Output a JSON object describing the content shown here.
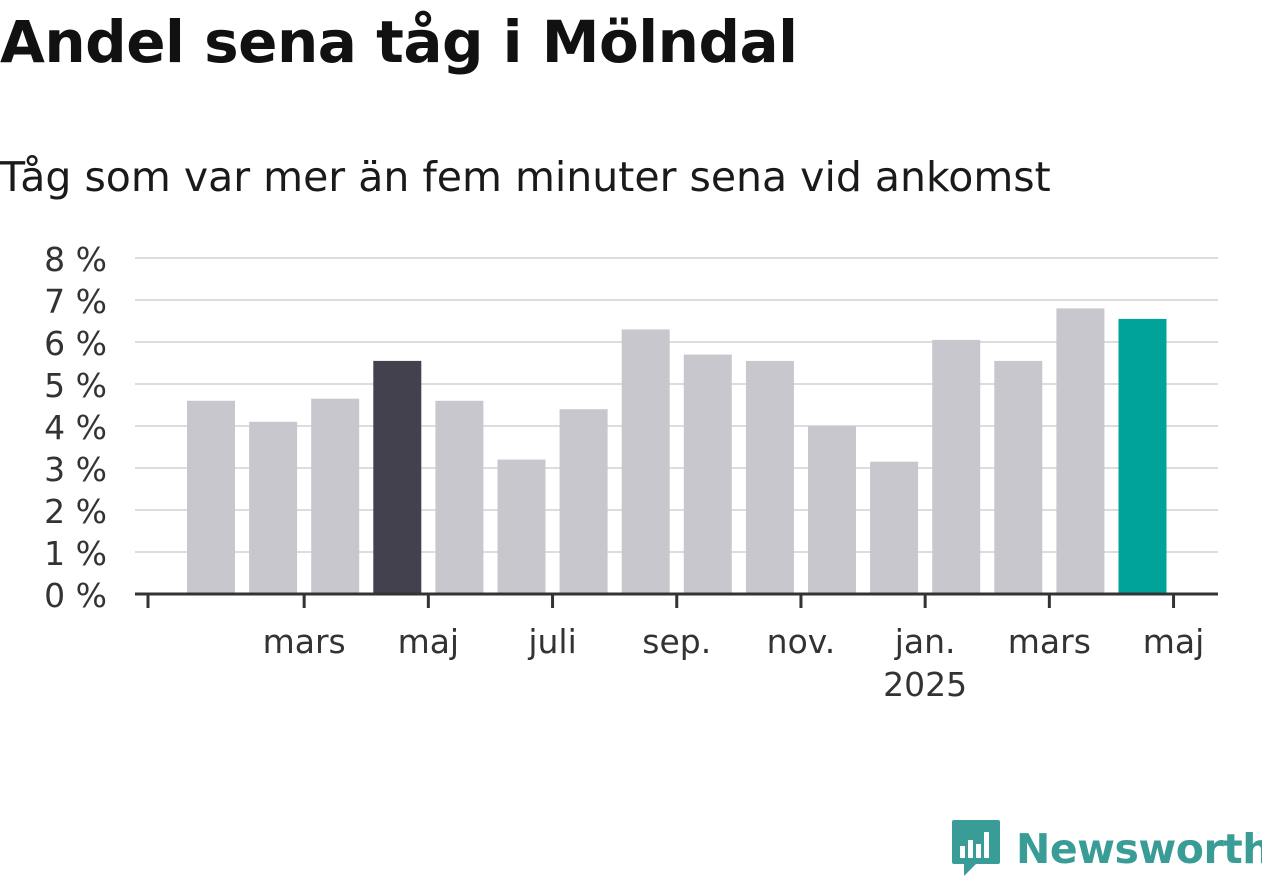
{
  "title": "Andel sena tåg i Mölndal",
  "subtitle": "Tåg som var mer än fem minuter sena vid ankomst",
  "brand": {
    "name": "Newsworthy",
    "icon": "newsworthy-logo-icon"
  },
  "colors": {
    "bar_default": "#c8c7ce",
    "bar_highlight_dark": "#42414d",
    "bar_highlight_teal": "#00a398",
    "grid": "#dddddd",
    "axis": "#333333",
    "tick_text": "#333333",
    "brand": "#3a9c97"
  },
  "chart_data": {
    "type": "bar",
    "ylim": [
      0,
      8
    ],
    "grid": true,
    "y_ticks": [
      {
        "value": 0,
        "label": "0 %"
      },
      {
        "value": 1,
        "label": "1 %"
      },
      {
        "value": 2,
        "label": "2 %"
      },
      {
        "value": 3,
        "label": "3 %"
      },
      {
        "value": 4,
        "label": "4 %"
      },
      {
        "value": 5,
        "label": "5 %"
      },
      {
        "value": 6,
        "label": "6 %"
      },
      {
        "value": 7,
        "label": "7 %"
      },
      {
        "value": 8,
        "label": "8 %"
      }
    ],
    "x_tick_labels": [
      {
        "after_bar": 1,
        "label": "mars",
        "sub": ""
      },
      {
        "after_bar": 3,
        "label": "maj",
        "sub": ""
      },
      {
        "after_bar": 5,
        "label": "juli",
        "sub": ""
      },
      {
        "after_bar": 7,
        "label": "sep.",
        "sub": ""
      },
      {
        "after_bar": 9,
        "label": "nov.",
        "sub": ""
      },
      {
        "after_bar": 11,
        "label": "jan.",
        "sub": "2025"
      },
      {
        "after_bar": 13,
        "label": "mars",
        "sub": ""
      },
      {
        "after_bar": 15,
        "label": "maj",
        "sub": ""
      }
    ],
    "values": [
      4.6,
      4.1,
      4.65,
      5.55,
      4.6,
      3.2,
      4.4,
      6.3,
      5.7,
      5.55,
      4.0,
      3.15,
      6.05,
      5.55,
      6.8,
      6.55
    ],
    "highlight": {
      "3": "dark",
      "15": "teal"
    }
  }
}
